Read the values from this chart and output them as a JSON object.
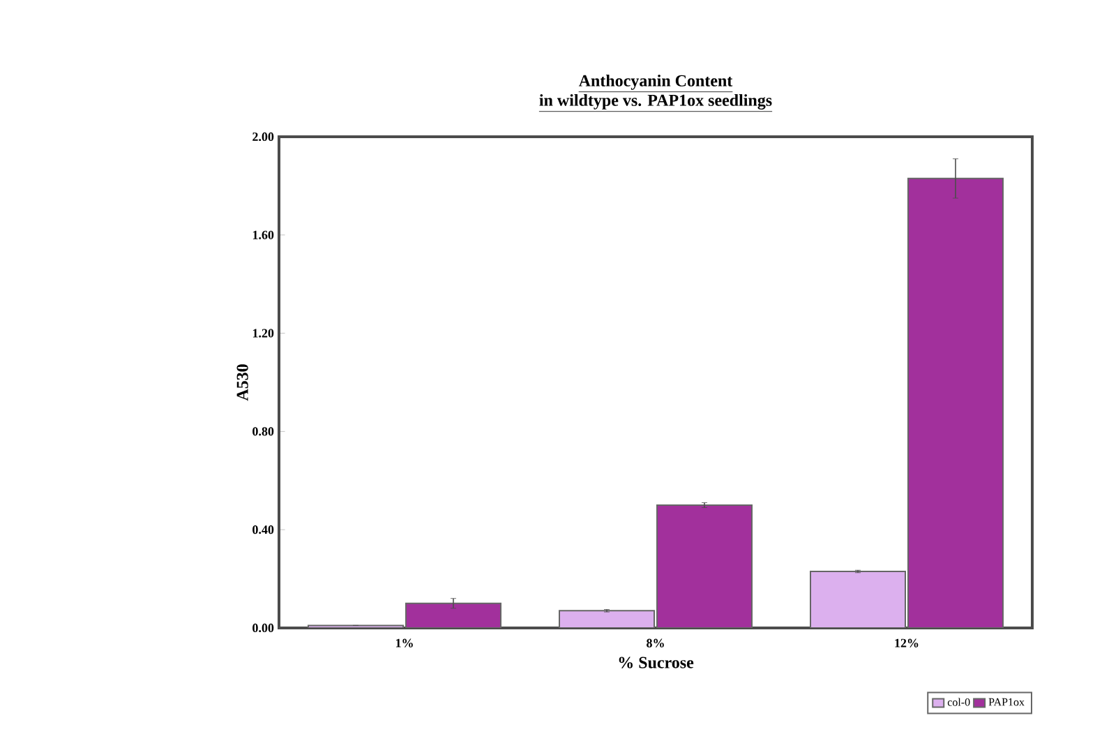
{
  "chart_data": {
    "type": "bar",
    "title": "Anthocyanin Content",
    "subtitle": "in wildtype vs. PAP1ox seedlings",
    "xlabel": "% Sucrose",
    "ylabel": "A530",
    "categories": [
      "1%",
      "8%",
      "12%"
    ],
    "series": [
      {
        "name": "col-0",
        "color": "#dcb0ee",
        "values": [
          0.01,
          0.07,
          0.23
        ],
        "errors": [
          null,
          0.005,
          0.005
        ]
      },
      {
        "name": "PAP1ox",
        "color": "#a2309c",
        "values": [
          0.1,
          0.5,
          1.83
        ],
        "errors": [
          0.02,
          0.01,
          0.08
        ]
      }
    ],
    "ylim": [
      0,
      2.0
    ],
    "yticks": [
      {
        "value": 0,
        "label": "0.00"
      },
      {
        "value": 0.4,
        "label": "0.40"
      },
      {
        "value": 0.8,
        "label": "0.80"
      },
      {
        "value": 1.2,
        "label": "1.20"
      },
      {
        "value": 1.6,
        "label": "1.60"
      },
      {
        "value": 2.0,
        "label": "2.00"
      }
    ],
    "grid": false,
    "legend": "bottom right"
  }
}
